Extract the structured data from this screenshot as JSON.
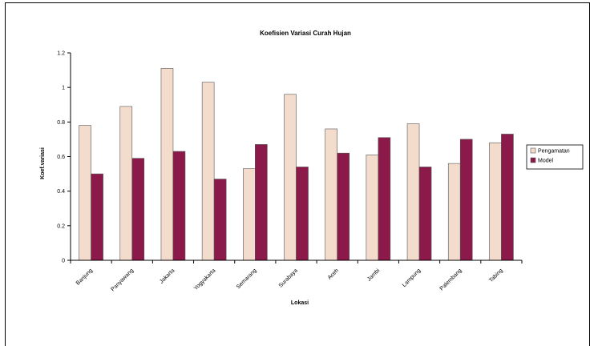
{
  "chart_data": {
    "type": "bar",
    "title": "Koefisien Variasi Curah Hujan",
    "xlabel": "Lokasi",
    "ylabel": "Koef.variasi",
    "ylim": [
      0,
      1.2
    ],
    "yticks": [
      "0",
      "0.2",
      "0.4",
      "0.6",
      "0.8",
      "1",
      "1.2"
    ],
    "grid": false,
    "legend_position": "right",
    "categories": [
      "Banjung",
      "Panyawang",
      "Jakarta",
      "Yogyakarta",
      "Semarang",
      "Surabaya",
      "Aceh",
      "Jambi",
      "Lampung",
      "Palembang",
      "Tabing"
    ],
    "series": [
      {
        "name": "Pengamatan",
        "color": "#f4dccd",
        "values": [
          0.78,
          0.89,
          1.11,
          1.03,
          0.53,
          0.96,
          0.76,
          0.61,
          0.79,
          0.56,
          0.68
        ]
      },
      {
        "name": "Model",
        "color": "#8b1a4a",
        "values": [
          0.5,
          0.59,
          0.63,
          0.47,
          0.67,
          0.54,
          0.62,
          0.71,
          0.54,
          0.7,
          0.73
        ]
      }
    ]
  }
}
